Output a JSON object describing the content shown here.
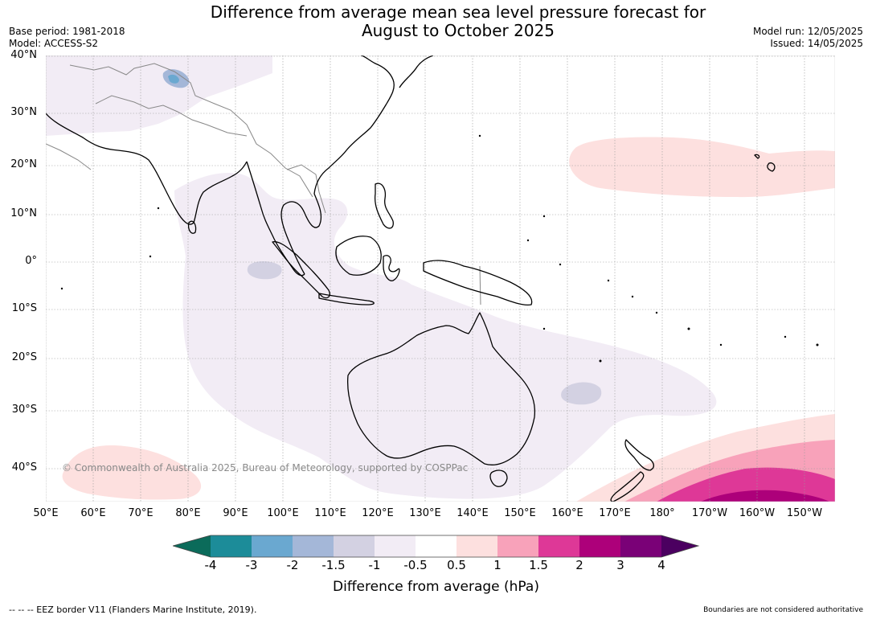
{
  "title": {
    "line1": "Difference from average mean sea level pressure forecast for",
    "line2": "August to October 2025"
  },
  "meta": {
    "base_period": "Base period: 1981-2018",
    "model": "Model: ACCESS-S2",
    "model_run": "Model run: 12/05/2025",
    "issued": "Issued: 14/05/2025"
  },
  "map": {
    "lat_labels": [
      "40°N",
      "30°N",
      "20°N",
      "10°N",
      "0°",
      "10°S",
      "20°S",
      "30°S",
      "40°S"
    ],
    "lon_labels": [
      "50°E",
      "60°E",
      "70°E",
      "80°E",
      "90°E",
      "100°E",
      "110°E",
      "120°E",
      "130°E",
      "140°E",
      "150°E",
      "160°E",
      "170°E",
      "180°",
      "170°W",
      "160°W",
      "150°W"
    ],
    "copyright": "© Commonwealth of Australia 2025, Bureau of Meteorology, supported by COSPPac",
    "coastline_color": "#000000",
    "border_color": "#888888"
  },
  "colorbar": {
    "tick_labels": [
      "-4",
      "-3",
      "-2",
      "-1.5",
      "-1",
      "-0.5",
      "0.5",
      "1",
      "1.5",
      "2",
      "3",
      "4"
    ],
    "colors": {
      "below_-4": "#0b6b5a",
      "-4_to_-3": "#1c8c99",
      "-3_to_-2": "#6aa8d0",
      "-2_to_-1.5": "#a4b7d8",
      "-1.5_to_-1": "#d3d1e2",
      "-1_to_-0.5": "#f2ecf5",
      "-0.5_to_0.5": "#ffffff",
      "0.5_to_1": "#fde0df",
      "1_to_1.5": "#f8a2ba",
      "1.5_to_2": "#de3897",
      "2_to_3": "#ad007a",
      "3_to_4": "#7a0177",
      "above_4": "#4b0060"
    },
    "title": "Difference from average (hPa)"
  },
  "footer": {
    "eez_note": "--  --  -- EEZ border V11 (Flanders Marine Institute, 2019).",
    "boundary_note": "Boundaries are not considered authoritative"
  }
}
